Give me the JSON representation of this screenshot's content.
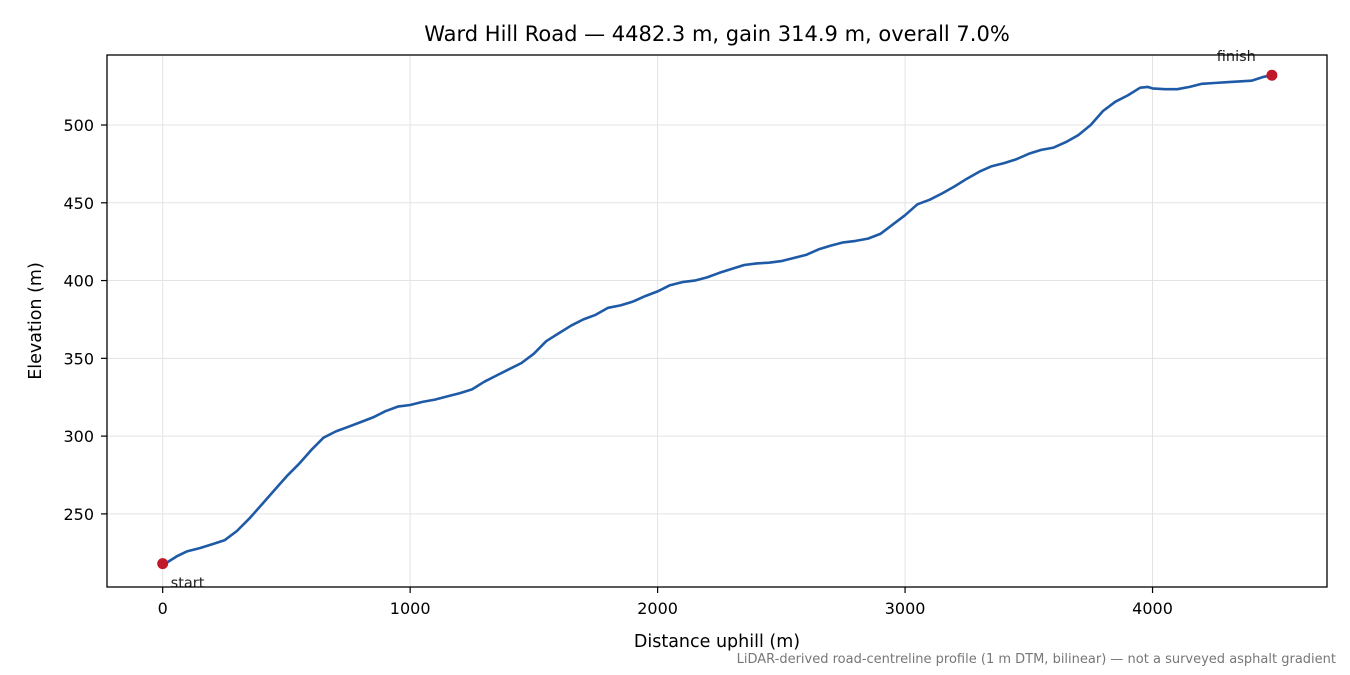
{
  "chart_data": {
    "type": "line",
    "title": "Ward Hill Road — 4482.3 m, gain 314.9 m, overall 7.0%",
    "xlabel": "Distance uphill (m)",
    "ylabel": "Elevation (m)",
    "xlim": [
      -225,
      4705
    ],
    "ylim": [
      203,
      545
    ],
    "xticks": [
      0,
      1000,
      2000,
      3000,
      4000
    ],
    "yticks": [
      250,
      300,
      350,
      400,
      450,
      500
    ],
    "grid": true,
    "line_color": "#1f5aa6",
    "marker_color": "#c0182a",
    "series": [
      {
        "points": [
          [
            0,
            218
          ],
          [
            20,
            219
          ],
          [
            60,
            223
          ],
          [
            100,
            226
          ],
          [
            150,
            228
          ],
          [
            200,
            230.5
          ],
          [
            250,
            233
          ],
          [
            300,
            239
          ],
          [
            350,
            247
          ],
          [
            400,
            256
          ],
          [
            450,
            265
          ],
          [
            500,
            274
          ],
          [
            550,
            282
          ],
          [
            600,
            291
          ],
          [
            650,
            299
          ],
          [
            700,
            303
          ],
          [
            750,
            306
          ],
          [
            800,
            309
          ],
          [
            850,
            312
          ],
          [
            900,
            316
          ],
          [
            950,
            319
          ],
          [
            1000,
            320
          ],
          [
            1050,
            322
          ],
          [
            1100,
            323.5
          ],
          [
            1150,
            325.5
          ],
          [
            1200,
            327.5
          ],
          [
            1250,
            330
          ],
          [
            1300,
            335
          ],
          [
            1350,
            339
          ],
          [
            1400,
            343
          ],
          [
            1450,
            347
          ],
          [
            1500,
            353
          ],
          [
            1550,
            361
          ],
          [
            1600,
            366
          ],
          [
            1650,
            371
          ],
          [
            1700,
            375
          ],
          [
            1750,
            378
          ],
          [
            1800,
            382.5
          ],
          [
            1850,
            384
          ],
          [
            1900,
            386.5
          ],
          [
            1950,
            390
          ],
          [
            2000,
            393
          ],
          [
            2050,
            397
          ],
          [
            2100,
            399
          ],
          [
            2150,
            400
          ],
          [
            2200,
            402
          ],
          [
            2250,
            405
          ],
          [
            2300,
            407.5
          ],
          [
            2350,
            410
          ],
          [
            2400,
            411
          ],
          [
            2450,
            411.5
          ],
          [
            2500,
            412.5
          ],
          [
            2550,
            414.5
          ],
          [
            2600,
            416.5
          ],
          [
            2650,
            420
          ],
          [
            2700,
            422.5
          ],
          [
            2750,
            424.5
          ],
          [
            2800,
            425.5
          ],
          [
            2850,
            427
          ],
          [
            2900,
            430
          ],
          [
            2950,
            436
          ],
          [
            3000,
            442
          ],
          [
            3050,
            449
          ],
          [
            3100,
            452
          ],
          [
            3150,
            456
          ],
          [
            3200,
            460.5
          ],
          [
            3250,
            465.5
          ],
          [
            3300,
            470
          ],
          [
            3350,
            473.5
          ],
          [
            3400,
            475.5
          ],
          [
            3450,
            478
          ],
          [
            3500,
            481.5
          ],
          [
            3550,
            484
          ],
          [
            3600,
            485.5
          ],
          [
            3650,
            489
          ],
          [
            3700,
            493.5
          ],
          [
            3750,
            500
          ],
          [
            3800,
            509
          ],
          [
            3850,
            515
          ],
          [
            3900,
            519
          ],
          [
            3950,
            524
          ],
          [
            3980,
            524.5
          ],
          [
            4000,
            523.5
          ],
          [
            4050,
            523
          ],
          [
            4100,
            523
          ],
          [
            4150,
            524.5
          ],
          [
            4200,
            526.5
          ],
          [
            4250,
            527
          ],
          [
            4300,
            527.5
          ],
          [
            4350,
            528
          ],
          [
            4400,
            528.5
          ],
          [
            4450,
            531
          ],
          [
            4482,
            532
          ]
        ]
      }
    ],
    "annotations": [
      {
        "label": "start",
        "x": 0,
        "y": 218
      },
      {
        "label": "finish",
        "x": 4482.3,
        "y": 532
      }
    ],
    "footnote": "LiDAR-derived road-centreline profile (1 m DTM, bilinear) — not a surveyed asphalt gradient"
  }
}
